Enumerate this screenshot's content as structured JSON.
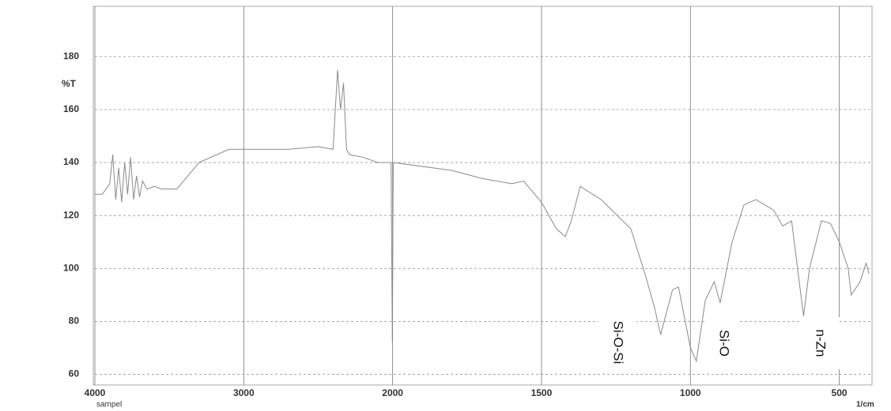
{
  "chart_data": {
    "type": "line",
    "y_label": "%T",
    "x_label": "1/cm",
    "sample_label": "sampel",
    "annotations": [
      "Si-O-Si",
      "Si-O",
      "n-Zn"
    ],
    "x": [
      4000,
      3950,
      3900,
      3880,
      3860,
      3840,
      3820,
      3800,
      3780,
      3760,
      3740,
      3720,
      3700,
      3680,
      3650,
      3600,
      3550,
      3450,
      3300,
      3100,
      2900,
      2700,
      2500,
      2400,
      2370,
      2350,
      2330,
      2310,
      2290,
      2200,
      2100,
      2010,
      2002,
      1998,
      1800,
      1700,
      1600,
      1560,
      1500,
      1450,
      1420,
      1400,
      1370,
      1300,
      1200,
      1150,
      1120,
      1100,
      1060,
      1040,
      1000,
      980,
      950,
      920,
      900,
      860,
      820,
      780,
      720,
      690,
      660,
      640,
      620,
      600,
      560,
      530,
      500,
      470,
      460,
      430,
      410,
      400
    ],
    "values": [
      128,
      128,
      132,
      143,
      126,
      138,
      125,
      140,
      128,
      142,
      126,
      135,
      127,
      133,
      130,
      131,
      130,
      130,
      140,
      145,
      145,
      145,
      146,
      145,
      175,
      160,
      170,
      145,
      143,
      142,
      140,
      140,
      72,
      140,
      137,
      134,
      132,
      133,
      125,
      115,
      112,
      118,
      131,
      126,
      115,
      97,
      85,
      75,
      92,
      93,
      70,
      65,
      88,
      95,
      87,
      110,
      124,
      126,
      122,
      116,
      118,
      100,
      82,
      100,
      118,
      117,
      110,
      100,
      90,
      95,
      102,
      98
    ],
    "color": "#8a8a8a",
    "xlim": [
      4000,
      390
    ],
    "xbreak": 2000,
    "xbreak_ratio": 2,
    "xticks": [
      4000,
      3000,
      2000,
      1500,
      1000,
      500
    ],
    "ylim": [
      56,
      199
    ],
    "yticks": [
      60,
      80,
      100,
      120,
      140,
      160,
      180
    ],
    "grid": true
  }
}
